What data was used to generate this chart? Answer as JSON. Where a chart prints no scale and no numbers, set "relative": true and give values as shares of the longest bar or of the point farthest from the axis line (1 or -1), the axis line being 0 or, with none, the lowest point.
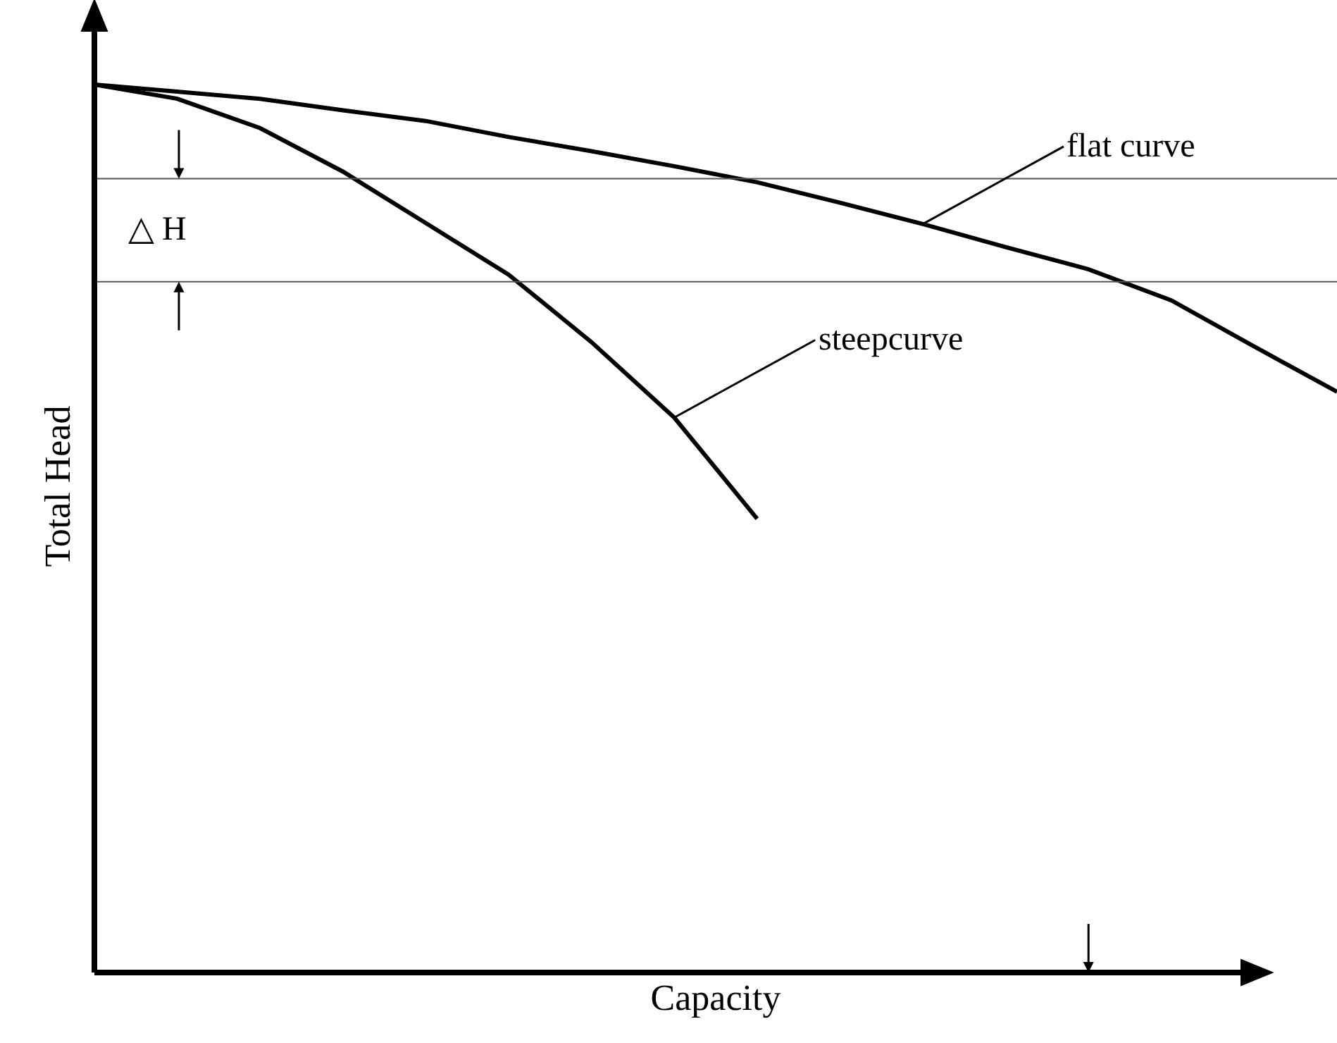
{
  "chart_data": {
    "type": "line",
    "relative": true,
    "xlabel": "Capacity",
    "ylabel": "Total Head",
    "categories": [
      null,
      null,
      null,
      null,
      null,
      null,
      null,
      null,
      null,
      null,
      null,
      null,
      null,
      null,
      null,
      null
    ],
    "series": [
      {
        "color": "#000000",
        "values": [
          1,
          0.992,
          0.984,
          0.971,
          0.959,
          0.941,
          0.925,
          0.908,
          0.89,
          0.867,
          0.843,
          0.817,
          0.792,
          0.757,
          0.705,
          0.654
        ]
      },
      {
        "color": "#000000",
        "values": [
          1,
          0.984,
          0.951,
          0.902,
          0.844,
          0.786,
          0.71,
          0.625,
          0.511,
          null,
          null,
          null,
          null,
          null,
          null,
          null
        ]
      }
    ],
    "ref_lines": [
      {
        "axis": "y",
        "value": 0.894,
        "label": "△ H",
        "color": "#555555"
      },
      {
        "axis": "y",
        "value": 0.778,
        "color": "#555555"
      }
    ],
    "annotations": [
      "flat curve",
      "steepcurve"
    ],
    "marker": "none",
    "line_style": "solid"
  }
}
